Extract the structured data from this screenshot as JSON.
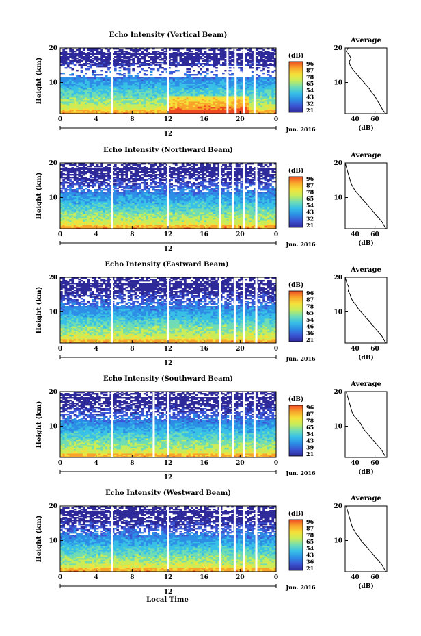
{
  "xlabel": "Local Time",
  "date_label": "Jun. 2016",
  "ylabel": "Height (km)",
  "colorbar_unit": "(dB)",
  "colorbar_ticks": [
    "96",
    "87",
    "78",
    "65",
    "54",
    "43",
    "32",
    "21"
  ],
  "colorbar_ticks_east": [
    "96",
    "87",
    "78",
    "65",
    "54",
    "46",
    "36",
    "21"
  ],
  "colorbar_ticks_west": [
    "96",
    "87",
    "78",
    "65",
    "54",
    "43",
    "36",
    "21"
  ],
  "avg_title": "Average",
  "avg_xlabel": "(dB)",
  "colorscale": [
    "#2f2a9a",
    "#3a56d4",
    "#2d8ee6",
    "#38c0e6",
    "#6fdcb4",
    "#c8ec5a",
    "#f5e13a",
    "#f8a52a",
    "#ef4a22"
  ],
  "chart_data": [
    {
      "type": "heatmap",
      "title": "Echo Intensity (Vertical Beam)",
      "xlabel": "Local Time",
      "ylabel": "Height (km)",
      "xlim": [
        0,
        24
      ],
      "ylim": [
        1,
        20
      ],
      "x_ticks": [
        "0",
        "4",
        "8",
        "12",
        "16",
        "20",
        "0"
      ],
      "y_ticks": [
        "20",
        "10"
      ],
      "sub_ticks": [
        "12"
      ],
      "colorbar": {
        "unit": "(dB)",
        "range": [
          21,
          96
        ],
        "ticks": [
          "96",
          "87",
          "78",
          "65",
          "54",
          "43",
          "32",
          "21"
        ]
      },
      "gaps_hours": [
        5.8,
        12.0,
        18.6,
        19.5,
        20.4,
        21.6
      ],
      "profile": {
        "title": "Average",
        "xlabel": "(dB)",
        "x_ticks": [
          "40",
          "60"
        ],
        "xlim": [
          30,
          72
        ],
        "y_ticks": [
          "20",
          "10"
        ],
        "height_km": [
          1,
          2,
          3,
          4,
          5,
          6,
          7,
          8,
          9,
          10,
          11,
          12,
          13,
          14,
          15,
          16,
          17,
          18,
          19,
          20
        ],
        "db": [
          71,
          68,
          66,
          64,
          62,
          60,
          57,
          55,
          52,
          49,
          46,
          43,
          40,
          37,
          35,
          34,
          36,
          34,
          31,
          33
        ]
      }
    },
    {
      "type": "heatmap",
      "title": "Echo Intensity (Northward Beam)",
      "xlabel": "Local Time",
      "ylabel": "Height (km)",
      "xlim": [
        0,
        24
      ],
      "ylim": [
        1,
        20
      ],
      "x_ticks": [
        "0",
        "4",
        "8",
        "12",
        "16",
        "20",
        "0"
      ],
      "y_ticks": [
        "20",
        "10"
      ],
      "sub_ticks": [
        "12"
      ],
      "colorbar": {
        "unit": "(dB)",
        "range": [
          21,
          96
        ],
        "ticks": [
          "96",
          "87",
          "78",
          "65",
          "54",
          "43",
          "32",
          "21"
        ]
      },
      "gaps_hours": [
        5.8,
        12.0,
        17.8,
        19.2,
        20.4,
        21.8
      ],
      "profile": {
        "title": "Average",
        "xlabel": "(dB)",
        "x_ticks": [
          "40",
          "60"
        ],
        "xlim": [
          30,
          72
        ],
        "y_ticks": [
          "20",
          "10"
        ],
        "height_km": [
          1,
          2,
          3,
          4,
          5,
          6,
          7,
          8,
          9,
          10,
          11,
          12,
          13,
          14,
          15,
          16,
          17,
          18,
          19,
          20
        ],
        "db": [
          71,
          69,
          67,
          64,
          61,
          58,
          55,
          52,
          49,
          46,
          43,
          40,
          38,
          36,
          35,
          34,
          33,
          32,
          31,
          30
        ]
      }
    },
    {
      "type": "heatmap",
      "title": "Echo Intensity (Eastward Beam)",
      "xlabel": "Local Time",
      "ylabel": "Height (km)",
      "xlim": [
        0,
        24
      ],
      "ylim": [
        1,
        20
      ],
      "x_ticks": [
        "0",
        "4",
        "8",
        "12",
        "16",
        "20",
        "0"
      ],
      "y_ticks": [
        "20",
        "10"
      ],
      "sub_ticks": [
        "12"
      ],
      "colorbar": {
        "unit": "(dB)",
        "range": [
          21,
          96
        ],
        "ticks": [
          "96",
          "87",
          "78",
          "65",
          "54",
          "46",
          "36",
          "21"
        ]
      },
      "gaps_hours": [
        5.8,
        12.0,
        17.8,
        19.4,
        20.4,
        21.8
      ],
      "profile": {
        "title": "Average",
        "xlabel": "(dB)",
        "x_ticks": [
          "40",
          "60"
        ],
        "xlim": [
          30,
          72
        ],
        "y_ticks": [
          "20",
          "10"
        ],
        "height_km": [
          1,
          2,
          3,
          4,
          5,
          6,
          7,
          8,
          9,
          10,
          11,
          12,
          13,
          14,
          15,
          16,
          17,
          18,
          19,
          20
        ],
        "db": [
          71,
          69,
          67,
          64,
          61,
          58,
          55,
          52,
          49,
          46,
          43,
          41,
          38,
          36,
          35,
          33,
          34,
          32,
          31,
          30
        ]
      }
    },
    {
      "type": "heatmap",
      "title": "Echo Intensity (Southward Beam)",
      "xlabel": "Local Time",
      "ylabel": "Height (km)",
      "xlim": [
        0,
        24
      ],
      "ylim": [
        1,
        20
      ],
      "x_ticks": [
        "0",
        "4",
        "8",
        "12",
        "16",
        "20",
        "0"
      ],
      "y_ticks": [
        "20",
        "10"
      ],
      "sub_ticks": [
        "12"
      ],
      "colorbar": {
        "unit": "(dB)",
        "range": [
          21,
          96
        ],
        "ticks": [
          "96",
          "87",
          "78",
          "65",
          "54",
          "43",
          "39",
          "21"
        ]
      },
      "gaps_hours": [
        5.8,
        10.4,
        12.0,
        17.8,
        19.2,
        20.4,
        21.6
      ],
      "profile": {
        "title": "Average",
        "xlabel": "(dB)",
        "x_ticks": [
          "40",
          "60"
        ],
        "xlim": [
          30,
          72
        ],
        "y_ticks": [
          "20",
          "10"
        ],
        "height_km": [
          1,
          2,
          3,
          4,
          5,
          6,
          7,
          8,
          9,
          10,
          11,
          12,
          13,
          14,
          15,
          16,
          17,
          18,
          19,
          20
        ],
        "db": [
          71,
          69,
          67,
          64,
          61,
          58,
          55,
          52,
          49,
          47,
          45,
          42,
          39,
          37,
          36,
          35,
          34,
          33,
          32,
          31
        ]
      }
    },
    {
      "type": "heatmap",
      "title": "Echo Intensity (Westward Beam)",
      "xlabel": "Local Time",
      "ylabel": "Height (km)",
      "xlim": [
        0,
        24
      ],
      "ylim": [
        1,
        20
      ],
      "x_ticks": [
        "0",
        "4",
        "8",
        "12",
        "16",
        "20",
        "0"
      ],
      "y_ticks": [
        "20",
        "10"
      ],
      "sub_ticks": [
        "12"
      ],
      "colorbar": {
        "unit": "(dB)",
        "range": [
          21,
          96
        ],
        "ticks": [
          "96",
          "87",
          "78",
          "65",
          "54",
          "43",
          "36",
          "21"
        ]
      },
      "gaps_hours": [
        5.8,
        12.0,
        17.8,
        19.4,
        20.4,
        21.8
      ],
      "profile": {
        "title": "Average",
        "xlabel": "(dB)",
        "x_ticks": [
          "40",
          "60"
        ],
        "xlim": [
          30,
          72
        ],
        "y_ticks": [
          "20",
          "10"
        ],
        "height_km": [
          1,
          2,
          3,
          4,
          5,
          6,
          7,
          8,
          9,
          10,
          11,
          12,
          13,
          14,
          15,
          16,
          17,
          18,
          19,
          20
        ],
        "db": [
          71,
          69,
          67,
          64,
          61,
          58,
          55,
          52,
          49,
          46,
          44,
          41,
          39,
          37,
          36,
          35,
          34,
          33,
          32,
          31
        ]
      }
    }
  ]
}
